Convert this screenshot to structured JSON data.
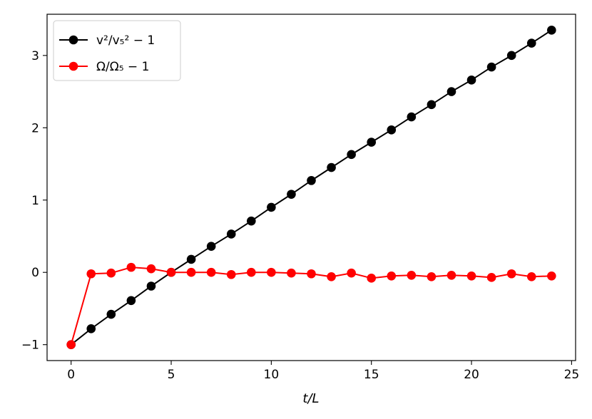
{
  "chart_data": {
    "type": "line",
    "title": "",
    "xlabel": "t/L",
    "ylabel": "",
    "xlim": [
      -1.2,
      25.2
    ],
    "ylim": [
      -1.22,
      3.57
    ],
    "xticks": [
      0,
      5,
      10,
      15,
      20,
      25
    ],
    "yticks": [
      -1,
      0,
      1,
      2,
      3
    ],
    "grid": false,
    "legend_position": "top-left",
    "x": [
      0,
      1,
      2,
      3,
      4,
      5,
      6,
      7,
      8,
      9,
      10,
      11,
      12,
      13,
      14,
      15,
      16,
      17,
      18,
      19,
      20,
      21,
      22,
      23,
      24
    ],
    "series": [
      {
        "name": "v²/v₅² − 1",
        "color": "#000000",
        "values": [
          -1.0,
          -0.78,
          -0.58,
          -0.39,
          -0.19,
          0.0,
          0.18,
          0.36,
          0.53,
          0.71,
          0.9,
          1.08,
          1.27,
          1.45,
          1.63,
          1.8,
          1.97,
          2.15,
          2.32,
          2.5,
          2.66,
          2.84,
          3.0,
          3.17,
          3.35
        ]
      },
      {
        "name": "Ω/Ω₅ − 1",
        "color": "#ff0000",
        "values": [
          -1.0,
          -0.02,
          -0.01,
          0.07,
          0.05,
          0.0,
          0.0,
          0.0,
          -0.03,
          0.0,
          0.0,
          -0.01,
          -0.02,
          -0.06,
          -0.01,
          -0.08,
          -0.05,
          -0.04,
          -0.06,
          -0.04,
          -0.05,
          -0.07,
          -0.02,
          -0.06,
          -0.05
        ]
      }
    ]
  }
}
